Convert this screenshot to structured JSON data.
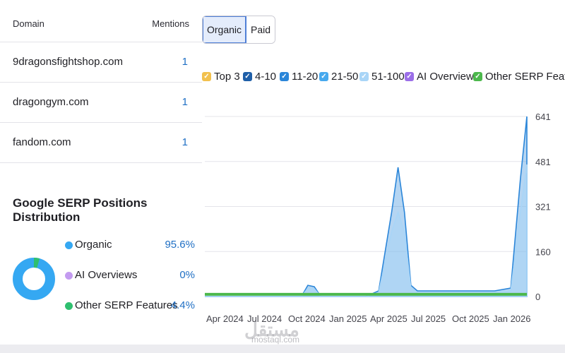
{
  "domains_table": {
    "header_domain": "Domain",
    "header_mentions": "Mentions",
    "rows": [
      {
        "domain": "9dragonsfightshop.com",
        "mentions": "1"
      },
      {
        "domain": "dragongym.com",
        "mentions": "1"
      },
      {
        "domain": "fandom.com",
        "mentions": "1"
      }
    ]
  },
  "distribution": {
    "title": "Google SERP Positions Distribution",
    "items": [
      {
        "label": "Organic",
        "value": "95.6%",
        "color": "#35a8f2",
        "fraction": 0.956
      },
      {
        "label": "AI Overviews",
        "value": "0%",
        "color": "#c39bf0",
        "fraction": 0.0
      },
      {
        "label": "Other SERP Features",
        "value": "4.4%",
        "color": "#2fbf6f",
        "fraction": 0.044
      }
    ]
  },
  "tabs": [
    {
      "label": "Organic",
      "active": true
    },
    {
      "label": "Paid",
      "active": false
    }
  ],
  "filters": [
    {
      "label": "Top 3",
      "color": "#f2c14e"
    },
    {
      "label": "4-10",
      "color": "#1f5fa8"
    },
    {
      "label": "11-20",
      "color": "#2b86d9"
    },
    {
      "label": "21-50",
      "color": "#47a9ee"
    },
    {
      "label": "51-100",
      "color": "#a9d5f7"
    },
    {
      "label": "AI Overviews",
      "color": "#9b6ee8"
    },
    {
      "label": "Other SERP Features",
      "color": "#4cb84c"
    }
  ],
  "chart_data": {
    "type": "area",
    "x_ticks": [
      "Apr 2024",
      "Jul 2024",
      "Oct 2024",
      "Jan 2025",
      "Apr 2025",
      "Jul 2025",
      "Oct 2025",
      "Jan 2026"
    ],
    "y_ticks": [
      "641",
      "481",
      "321",
      "160",
      "0"
    ],
    "ylim": [
      0,
      641
    ],
    "series": [
      {
        "name": "11-20",
        "color": "#2b86d9",
        "points": [
          [
            0.0,
            0
          ],
          [
            0.3,
            0
          ],
          [
            0.32,
            40
          ],
          [
            0.34,
            35
          ],
          [
            0.36,
            0
          ],
          [
            0.5,
            0
          ],
          [
            0.54,
            20
          ],
          [
            0.58,
            300
          ],
          [
            0.6,
            460
          ],
          [
            0.62,
            300
          ],
          [
            0.64,
            40
          ],
          [
            0.66,
            20
          ],
          [
            0.9,
            20
          ],
          [
            0.95,
            30
          ],
          [
            0.98,
            420
          ],
          [
            1.0,
            641
          ]
        ]
      },
      {
        "name": "51-100",
        "color": "#a9d5f7",
        "points": [
          [
            0.0,
            0
          ],
          [
            0.3,
            0
          ],
          [
            0.32,
            30
          ],
          [
            0.34,
            28
          ],
          [
            0.36,
            0
          ],
          [
            0.5,
            0
          ],
          [
            0.54,
            15
          ],
          [
            0.58,
            230
          ],
          [
            0.6,
            300
          ],
          [
            0.62,
            230
          ],
          [
            0.64,
            30
          ],
          [
            0.66,
            15
          ],
          [
            0.9,
            15
          ],
          [
            0.95,
            20
          ],
          [
            0.98,
            300
          ],
          [
            1.0,
            470
          ]
        ]
      }
    ],
    "baseline_series": {
      "name": "Other SERP Features",
      "color": "#4cb84c",
      "value": 8
    }
  },
  "watermark": {
    "logo": "مستقل",
    "site": "mostaql.com"
  }
}
